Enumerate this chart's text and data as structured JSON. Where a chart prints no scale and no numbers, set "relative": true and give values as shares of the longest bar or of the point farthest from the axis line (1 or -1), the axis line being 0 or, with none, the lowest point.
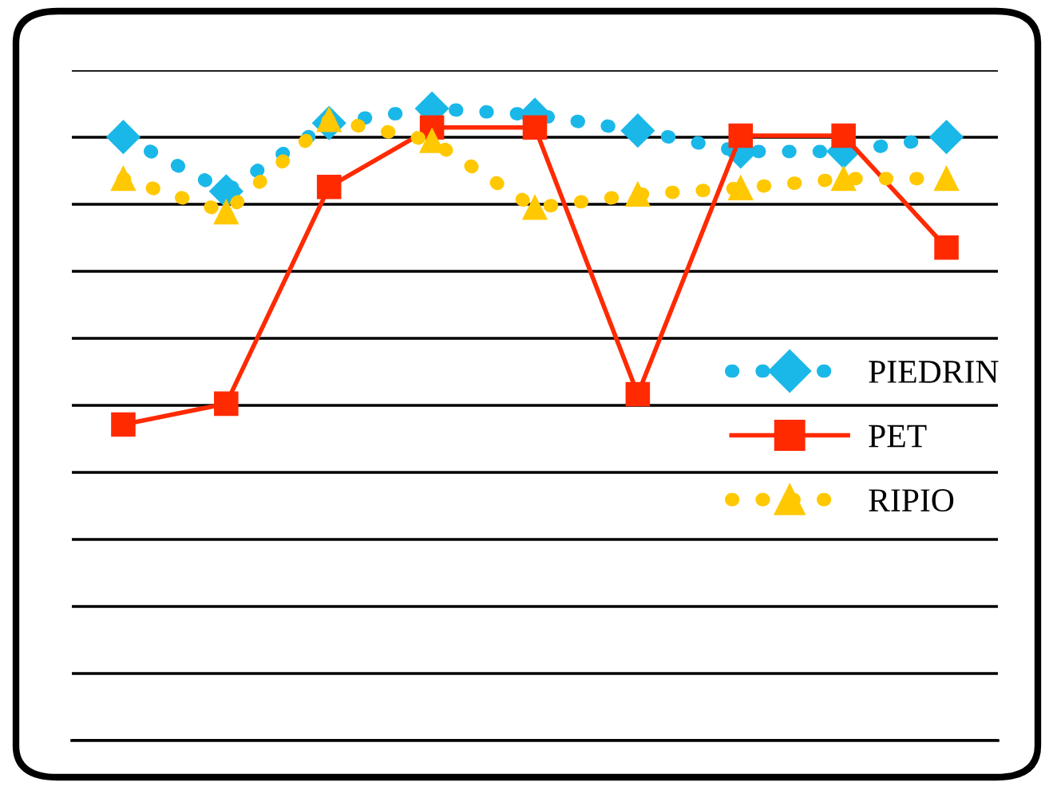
{
  "chart_data": {
    "type": "line",
    "relative": true,
    "categories": [
      null,
      null,
      null,
      null,
      null,
      null,
      null,
      null,
      null
    ],
    "series": [
      {
        "name": "PIEDRIN",
        "color": "#1ab8e8",
        "marker": "diamond",
        "line_style": "dotted",
        "values": [
          0.955,
          0.869,
          0.977,
          1,
          0.99,
          0.965,
          0.932,
          0.932,
          0.955
        ]
      },
      {
        "name": "PET",
        "color": "#ff2a00",
        "marker": "square",
        "line_style": "solid",
        "values": [
          0.5,
          0.533,
          0.876,
          0.97,
          0.97,
          0.548,
          0.957,
          0.957,
          0.78
        ]
      },
      {
        "name": "RIPIO",
        "color": "#ffc800",
        "marker": "triangle",
        "line_style": "dotted",
        "values": [
          0.889,
          0.836,
          0.982,
          0.949,
          0.843,
          0.864,
          0.874,
          0.889,
          0.889
        ]
      }
    ],
    "grid": "y",
    "legend": "right"
  }
}
